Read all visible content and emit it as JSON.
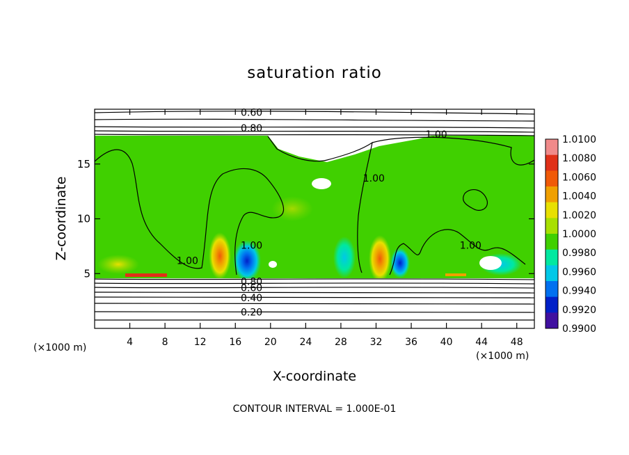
{
  "chart_data": {
    "type": "heatmap",
    "title": "saturation ratio",
    "xlabel": "X-coordinate",
    "ylabel": "Z-coordinate",
    "x_unit_left": "(×1000 m)",
    "x_unit_right": "(×1000 m)",
    "xlim": [
      0,
      50
    ],
    "ylim": [
      0,
      20
    ],
    "xticks": [
      4,
      8,
      12,
      16,
      20,
      24,
      28,
      32,
      36,
      40,
      44,
      48
    ],
    "yticks": [
      5,
      10,
      15
    ],
    "footer": "CONTOUR INTERVAL = 1.000E-01",
    "colorbar": {
      "ticks": [
        "1.0100",
        "1.0080",
        "1.0060",
        "1.0040",
        "1.0020",
        "1.0000",
        "0.9980",
        "0.9960",
        "0.9940",
        "0.9920",
        "0.9900"
      ],
      "colors": [
        "#f08a8a",
        "#e03018",
        "#f05a08",
        "#f0a000",
        "#e8e000",
        "#a8e000",
        "#40d000",
        "#00e8a0",
        "#00c8e8",
        "#0070f0",
        "#0020c8",
        "#4010a0"
      ]
    },
    "contour_labels": [
      {
        "text": "0.60",
        "x": 16.3,
        "y": 19.7
      },
      {
        "text": "0.80",
        "x": 16.3,
        "y": 18.3
      },
      {
        "text": "1.00",
        "x": 37.3,
        "y": 17.7
      },
      {
        "text": "1.00",
        "x": 30.2,
        "y": 13.7
      },
      {
        "text": "1.00",
        "x": 16.3,
        "y": 7.6
      },
      {
        "text": "1.00",
        "x": 9.0,
        "y": 6.2
      },
      {
        "text": "1.00",
        "x": 41.2,
        "y": 7.6
      },
      {
        "text": "0.80",
        "x": 16.3,
        "y": 4.3
      },
      {
        "text": "0.60",
        "x": 16.3,
        "y": 3.7
      },
      {
        "text": "0.40",
        "x": 16.3,
        "y": 2.8
      },
      {
        "text": "0.20",
        "x": 16.3,
        "y": 1.5
      }
    ]
  }
}
